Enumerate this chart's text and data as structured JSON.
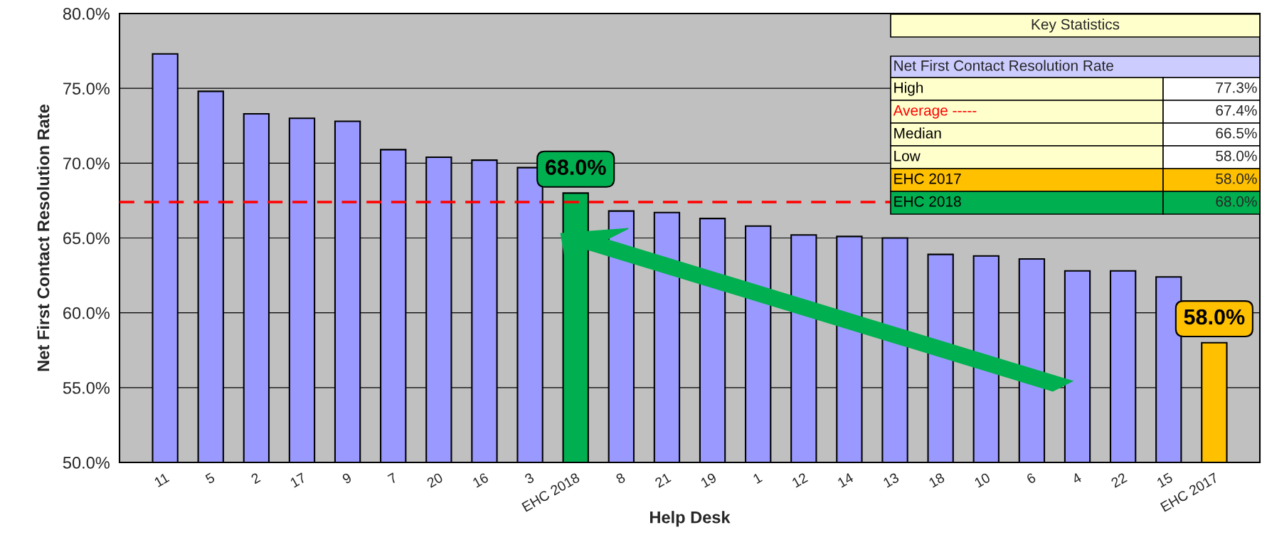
{
  "chart_data": {
    "type": "bar",
    "xlabel": "Help Desk",
    "ylabel": "Net First Contact Resolution Rate",
    "categories": [
      "11",
      "5",
      "2",
      "17",
      "9",
      "7",
      "20",
      "16",
      "3",
      "EHC 2018",
      "8",
      "21",
      "19",
      "1",
      "12",
      "14",
      "13",
      "18",
      "10",
      "6",
      "4",
      "22",
      "15",
      "EHC 2017"
    ],
    "values": [
      77.3,
      74.8,
      73.3,
      73.0,
      72.8,
      70.9,
      70.4,
      70.2,
      69.7,
      68.0,
      66.8,
      66.7,
      66.3,
      65.8,
      65.2,
      65.1,
      65.0,
      63.9,
      63.8,
      63.6,
      62.8,
      62.8,
      62.4,
      58.0
    ],
    "colors": [
      "#9999ff",
      "#9999ff",
      "#9999ff",
      "#9999ff",
      "#9999ff",
      "#9999ff",
      "#9999ff",
      "#9999ff",
      "#9999ff",
      "#00b050",
      "#9999ff",
      "#9999ff",
      "#9999ff",
      "#9999ff",
      "#9999ff",
      "#9999ff",
      "#9999ff",
      "#9999ff",
      "#9999ff",
      "#9999ff",
      "#9999ff",
      "#9999ff",
      "#9999ff",
      "#ffc000"
    ],
    "value_labels": [
      null,
      null,
      null,
      null,
      null,
      null,
      null,
      null,
      null,
      "68.0%",
      null,
      null,
      null,
      null,
      null,
      null,
      null,
      null,
      null,
      null,
      null,
      null,
      null,
      "58.0%"
    ],
    "ylim": [
      50,
      80
    ],
    "yticks": [
      {
        "value": 50,
        "label": "50.0%"
      },
      {
        "value": 55,
        "label": "55.0%"
      },
      {
        "value": 60,
        "label": "60.0%"
      },
      {
        "value": 65,
        "label": "65.0%"
      },
      {
        "value": 70,
        "label": "70.0%"
      },
      {
        "value": 75,
        "label": "75.0%"
      },
      {
        "value": 80,
        "label": "80.0%"
      }
    ],
    "grid": "y",
    "ref_lines": [
      {
        "axis": "y",
        "value": 67.4,
        "label": null,
        "color": "#ff0000",
        "line_style": "dashed"
      }
    ],
    "annotations": [
      "Key Statistics",
      "Net First Contact Resolution Rate",
      "High",
      "77.3%",
      "Average -----",
      "67.4%",
      "Median",
      "66.5%",
      "Low",
      "58.0%",
      "EHC 2017",
      "58.0%",
      "EHC 2018",
      "68.0%"
    ]
  }
}
